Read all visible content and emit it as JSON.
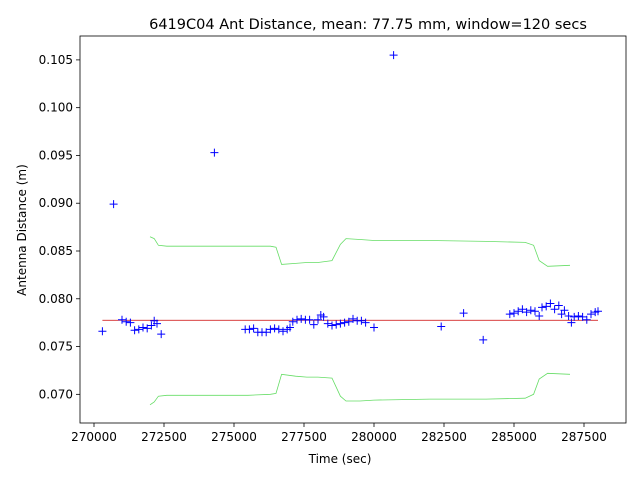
{
  "chart_data": {
    "type": "scatter",
    "title": "6419C04 Ant Distance, mean: 77.75 mm, window=120 secs",
    "xlabel": "Time (sec)",
    "ylabel": "Antenna Distance (m)",
    "xlim": [
      269500,
      289000
    ],
    "ylim": [
      0.067,
      0.1075
    ],
    "grid": false,
    "xticks": [
      270000,
      272500,
      275000,
      277500,
      280000,
      282500,
      285000,
      287500
    ],
    "xtick_labels": [
      "270000",
      "272500",
      "275000",
      "277500",
      "280000",
      "282500",
      "285000",
      "287500"
    ],
    "yticks": [
      0.07,
      0.075,
      0.08,
      0.085,
      0.09,
      0.095,
      0.1,
      0.105
    ],
    "ytick_labels": [
      "0.070",
      "0.075",
      "0.080",
      "0.085",
      "0.090",
      "0.095",
      "0.100",
      "0.105"
    ],
    "colors": {
      "points": "#0000ff",
      "mean": "#cc0000",
      "bounds": "#66dd66"
    },
    "mean": {
      "value": 0.07775,
      "x": [
        270300,
        288000
      ]
    },
    "points": [
      [
        270300,
        0.0766
      ],
      [
        270700,
        0.0899
      ],
      [
        271000,
        0.0778
      ],
      [
        271150,
        0.0776
      ],
      [
        271300,
        0.0775
      ],
      [
        271450,
        0.0767
      ],
      [
        271600,
        0.0768
      ],
      [
        271750,
        0.077
      ],
      [
        271900,
        0.0769
      ],
      [
        272050,
        0.0772
      ],
      [
        272150,
        0.0777
      ],
      [
        272250,
        0.0774
      ],
      [
        272400,
        0.0763
      ],
      [
        274300,
        0.0953
      ],
      [
        275400,
        0.0768
      ],
      [
        275550,
        0.0768
      ],
      [
        275700,
        0.0769
      ],
      [
        275850,
        0.0765
      ],
      [
        276000,
        0.0765
      ],
      [
        276150,
        0.0765
      ],
      [
        276300,
        0.0768
      ],
      [
        276450,
        0.0769
      ],
      [
        276600,
        0.0768
      ],
      [
        276750,
        0.0766
      ],
      [
        276900,
        0.0768
      ],
      [
        277000,
        0.077
      ],
      [
        277100,
        0.0776
      ],
      [
        277250,
        0.0778
      ],
      [
        277400,
        0.0779
      ],
      [
        277550,
        0.0778
      ],
      [
        277700,
        0.0778
      ],
      [
        277850,
        0.0773
      ],
      [
        278000,
        0.0778
      ],
      [
        278100,
        0.0783
      ],
      [
        278200,
        0.0781
      ],
      [
        278350,
        0.0774
      ],
      [
        278500,
        0.0772
      ],
      [
        278650,
        0.0773
      ],
      [
        278800,
        0.0774
      ],
      [
        278950,
        0.0775
      ],
      [
        279100,
        0.0776
      ],
      [
        279250,
        0.0779
      ],
      [
        279400,
        0.0777
      ],
      [
        279550,
        0.0777
      ],
      [
        279700,
        0.0775
      ],
      [
        280000,
        0.077
      ],
      [
        280700,
        0.1055
      ],
      [
        282400,
        0.0771
      ],
      [
        283200,
        0.0785
      ],
      [
        283900,
        0.0757
      ],
      [
        284850,
        0.0784
      ],
      [
        285000,
        0.0785
      ],
      [
        285150,
        0.0787
      ],
      [
        285300,
        0.0789
      ],
      [
        285450,
        0.0786
      ],
      [
        285600,
        0.0788
      ],
      [
        285750,
        0.0787
      ],
      [
        285900,
        0.0782
      ],
      [
        286000,
        0.0791
      ],
      [
        286150,
        0.0792
      ],
      [
        286300,
        0.0795
      ],
      [
        286450,
        0.0789
      ],
      [
        286600,
        0.0793
      ],
      [
        286700,
        0.0784
      ],
      [
        286800,
        0.0788
      ],
      [
        286950,
        0.0782
      ],
      [
        287050,
        0.0775
      ],
      [
        287150,
        0.0781
      ],
      [
        287300,
        0.0782
      ],
      [
        287450,
        0.0781
      ],
      [
        287600,
        0.0778
      ],
      [
        287750,
        0.0784
      ],
      [
        287900,
        0.0786
      ],
      [
        288000,
        0.0787
      ]
    ],
    "upper_bound": [
      [
        272000,
        0.0865
      ],
      [
        272150,
        0.0863
      ],
      [
        272300,
        0.0856
      ],
      [
        272600,
        0.0855
      ],
      [
        274000,
        0.0855
      ],
      [
        275500,
        0.0855
      ],
      [
        276300,
        0.0855
      ],
      [
        276500,
        0.0854
      ],
      [
        276700,
        0.0836
      ],
      [
        277200,
        0.0837
      ],
      [
        277600,
        0.0838
      ],
      [
        278000,
        0.0838
      ],
      [
        278500,
        0.084
      ],
      [
        278800,
        0.0857
      ],
      [
        279000,
        0.0863
      ],
      [
        279500,
        0.0862
      ],
      [
        280000,
        0.0861
      ],
      [
        282000,
        0.0861
      ],
      [
        284000,
        0.086
      ],
      [
        285400,
        0.0859
      ],
      [
        285700,
        0.0856
      ],
      [
        285900,
        0.084
      ],
      [
        286200,
        0.0834
      ],
      [
        287000,
        0.0835
      ]
    ],
    "lower_bound": [
      [
        272000,
        0.0689
      ],
      [
        272150,
        0.0692
      ],
      [
        272300,
        0.0698
      ],
      [
        272600,
        0.0699
      ],
      [
        274000,
        0.0699
      ],
      [
        275500,
        0.0699
      ],
      [
        276300,
        0.07
      ],
      [
        276500,
        0.0701
      ],
      [
        276700,
        0.0721
      ],
      [
        277200,
        0.0719
      ],
      [
        277600,
        0.0718
      ],
      [
        278000,
        0.0718
      ],
      [
        278500,
        0.0717
      ],
      [
        278800,
        0.0698
      ],
      [
        279000,
        0.0693
      ],
      [
        279500,
        0.0693
      ],
      [
        280000,
        0.0694
      ],
      [
        282000,
        0.0695
      ],
      [
        284000,
        0.0695
      ],
      [
        285400,
        0.0696
      ],
      [
        285700,
        0.07
      ],
      [
        285900,
        0.0716
      ],
      [
        286200,
        0.0722
      ],
      [
        287000,
        0.0721
      ]
    ]
  }
}
